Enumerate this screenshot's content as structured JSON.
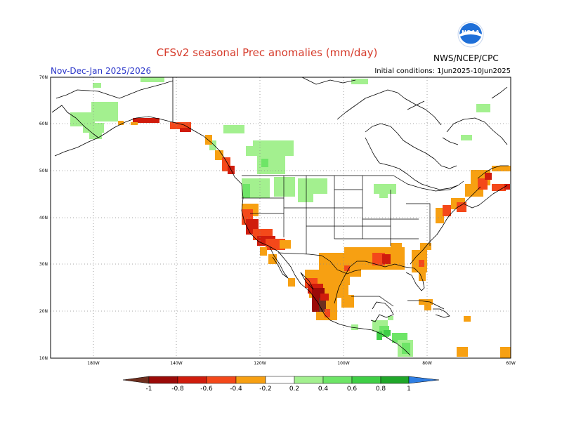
{
  "header": {
    "title": "CFSv2 seasonal Prec anomalies (mm/day)",
    "period": "Nov-Dec-Jan 2025/2026",
    "initial_conditions": "Initial conditions: 1Jun2025-10Jun2025",
    "agency": "NWS/NCEP/CPC",
    "logo_text": "NOAA"
  },
  "map": {
    "lat_labels": [
      "70N",
      "60N",
      "50N",
      "40N",
      "30N",
      "20N",
      "10N"
    ],
    "lon_labels": [
      "180W",
      "140W",
      "120W",
      "100W",
      "80W",
      "60W"
    ]
  },
  "colorbar": {
    "labels": [
      "-1",
      "-0.8",
      "-0.6",
      "-0.4",
      "-0.2",
      "0.2",
      "0.4",
      "0.6",
      "0.8",
      "1"
    ],
    "colors": {
      "lt_m1": "#6e2f1f",
      "m1_m08": "#9b0a08",
      "m08_m06": "#d01c0c",
      "m06_m04": "#f4481a",
      "m04_m02": "#f7a012",
      "neutral": "#ffffff",
      "p02_p04": "#a3f08f",
      "p04_p06": "#6ee567",
      "p06_p08": "#3fcf46",
      "p08_p1": "#1fa729",
      "gt_p1": "#2f7ee3"
    }
  }
}
